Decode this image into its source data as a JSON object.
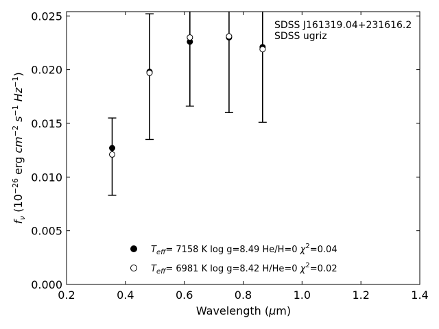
{
  "chart_data": {
    "type": "scatter",
    "xlabel": "Wavelength (μm)",
    "ylabel": "f_ν (10^-26 erg cm^-2 s^-1 Hz^-1)",
    "xlim": [
      0.2,
      1.4
    ],
    "ylim": [
      0.0,
      0.0254
    ],
    "x_ticks": [
      "0.2",
      "0.4",
      "0.6",
      "0.8",
      "1.0",
      "1.2",
      "1.4"
    ],
    "y_ticks": [
      "0.000",
      "0.005",
      "0.010",
      "0.015",
      "0.020",
      "0.025"
    ],
    "x_tick_values": [
      0.2,
      0.4,
      0.6,
      0.8,
      1.0,
      1.2,
      1.4
    ],
    "y_tick_values": [
      0.0,
      0.005,
      0.01,
      0.015,
      0.02,
      0.025
    ],
    "annotation": [
      "SDSS J161319.04+231616.2",
      "SDSS ugriz"
    ],
    "grid": false,
    "legend_placement": "bottom-center",
    "observed": {
      "x": [
        0.355,
        0.482,
        0.619,
        0.752,
        0.866
      ],
      "y": [
        0.0121,
        0.0197,
        0.023,
        0.0231,
        0.0219
      ],
      "y_err_low": [
        0.0083,
        0.0135,
        0.0166,
        0.016,
        0.0151
      ],
      "y_err_high": [
        0.0155,
        0.0252,
        0.026,
        0.026,
        0.026
      ]
    },
    "series": [
      {
        "name": "T_eff= 7158 K log g=8.49 He/H=0 χ²=0.04",
        "legend_parts": {
          "teff": "7158 K",
          "logg": "log g=8.49",
          "comp": "He/H=0",
          "chi": "=0.04"
        },
        "marker": "filled-circle",
        "x": [
          0.355,
          0.482,
          0.619,
          0.752,
          0.866
        ],
        "y": [
          0.0127,
          0.0198,
          0.0226,
          0.023,
          0.0221
        ]
      },
      {
        "name": "T_eff= 6981 K log g=8.42 H/He=0 χ²=0.02",
        "legend_parts": {
          "teff": "6981 K",
          "logg": "log g=8.42",
          "comp": "H/He=0",
          "chi": "=0.02"
        },
        "marker": "open-circle",
        "x": [
          0.355,
          0.482,
          0.619,
          0.752,
          0.866
        ],
        "y": [
          0.0121,
          0.0197,
          0.023,
          0.0231,
          0.0219
        ]
      }
    ]
  }
}
